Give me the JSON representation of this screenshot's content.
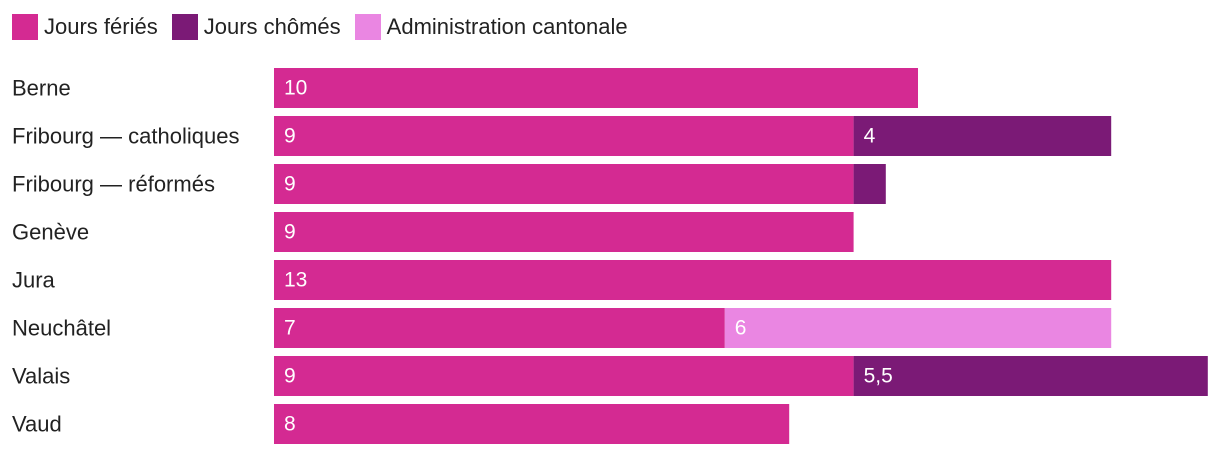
{
  "chart_data": {
    "type": "bar",
    "orientation": "horizontal",
    "stacked": true,
    "title": "",
    "xlabel": "",
    "ylabel": "",
    "xlim": [
      0,
      14.5
    ],
    "legend_position": "top-left",
    "grid": false,
    "categories": [
      "Berne",
      "Fribourg — catholiques",
      "Fribourg — réformés",
      "Genève",
      "Jura",
      "Neuchâtel",
      "Valais",
      "Vaud"
    ],
    "series": [
      {
        "name": "Jours fériés",
        "color": "#d42a92",
        "values": [
          10,
          9,
          9,
          9,
          13,
          7,
          9,
          8
        ],
        "labels": [
          "10",
          "9",
          "9",
          "9",
          "13",
          "7",
          "9",
          "8"
        ]
      },
      {
        "name": "Jours chômés",
        "color": "#7b1a76",
        "values": [
          0,
          4,
          0.5,
          0,
          0,
          0,
          5.5,
          0
        ],
        "labels": [
          "",
          "4",
          "",
          "",
          "",
          "",
          "5,5",
          ""
        ]
      },
      {
        "name": "Administration cantonale",
        "color": "#ea86e2",
        "values": [
          0,
          0,
          0,
          0,
          0,
          6,
          0,
          0
        ],
        "labels": [
          "",
          "",
          "",
          "",
          "",
          "6",
          "",
          ""
        ]
      }
    ]
  }
}
